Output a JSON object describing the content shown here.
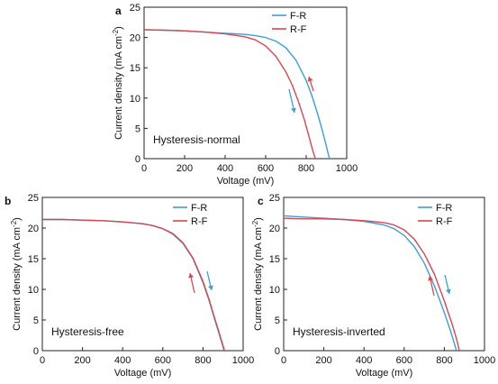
{
  "chart_data": [
    {
      "panel_label": "a",
      "type": "line",
      "annotation": "Hysteresis-normal",
      "xlabel": "Voltage (mV)",
      "ylabel_main": "Current density (mA cm",
      "ylabel_sup": "-2",
      "ylabel_close": ")",
      "xlim": [
        0,
        1000
      ],
      "ylim": [
        0,
        25
      ],
      "xticks": [
        0,
        200,
        400,
        600,
        800,
        1000
      ],
      "yticks": [
        0,
        5,
        10,
        15,
        20,
        25
      ],
      "legend": "top-right",
      "series": [
        {
          "name": "F-R",
          "color": "#3a9fd8",
          "x": [
            0,
            100,
            200,
            300,
            400,
            500,
            550,
            600,
            650,
            700,
            750,
            800,
            830,
            860,
            880,
            900,
            910,
            915
          ],
          "y": [
            21.3,
            21.2,
            21.1,
            20.9,
            20.7,
            20.5,
            20.3,
            20.0,
            19.4,
            18.3,
            16.2,
            12.9,
            10.2,
            7.0,
            4.6,
            2.0,
            0.6,
            0
          ]
        },
        {
          "name": "R-F",
          "color": "#d8474e",
          "x": [
            0,
            100,
            200,
            300,
            400,
            500,
            550,
            600,
            650,
            700,
            730,
            760,
            790,
            810,
            830,
            845
          ],
          "y": [
            21.3,
            21.2,
            21.1,
            20.9,
            20.6,
            20.1,
            19.6,
            18.6,
            16.9,
            14.3,
            12.2,
            9.6,
            6.5,
            4.1,
            1.6,
            0
          ]
        }
      ]
    },
    {
      "panel_label": "b",
      "type": "line",
      "annotation": "Hysteresis-free",
      "xlabel": "Voltage (mV)",
      "ylabel_main": "Current density (mA cm",
      "ylabel_sup": "-2",
      "ylabel_close": ")",
      "xlim": [
        0,
        1000
      ],
      "ylim": [
        0,
        25
      ],
      "xticks": [
        0,
        200,
        400,
        600,
        800,
        1000
      ],
      "yticks": [
        0,
        5,
        10,
        15,
        20,
        25
      ],
      "legend": "top-right",
      "series": [
        {
          "name": "F-R",
          "color": "#3a9fd8",
          "x": [
            0,
            100,
            200,
            300,
            400,
            500,
            550,
            600,
            650,
            700,
            750,
            800,
            830,
            860,
            880,
            900,
            905
          ],
          "y": [
            21.4,
            21.4,
            21.3,
            21.2,
            21.0,
            20.7,
            20.4,
            19.9,
            19.0,
            17.5,
            15.0,
            11.1,
            8.2,
            4.9,
            2.8,
            0.6,
            0
          ]
        },
        {
          "name": "R-F",
          "color": "#d8474e",
          "x": [
            0,
            100,
            200,
            300,
            400,
            500,
            550,
            600,
            650,
            700,
            750,
            800,
            830,
            860,
            880,
            900,
            907
          ],
          "y": [
            21.4,
            21.4,
            21.3,
            21.2,
            21.0,
            20.7,
            20.4,
            19.9,
            19.1,
            17.6,
            15.1,
            11.3,
            8.4,
            5.1,
            3.0,
            0.8,
            0
          ]
        }
      ]
    },
    {
      "panel_label": "c",
      "type": "line",
      "annotation": "Hysteresis-inverted",
      "xlabel": "Voltage (mV)",
      "ylabel_main": "Current density (mA cm",
      "ylabel_sup": "-2",
      "ylabel_close": ")",
      "xlim": [
        0,
        1000
      ],
      "ylim": [
        0,
        25
      ],
      "xticks": [
        0,
        200,
        400,
        600,
        800,
        1000
      ],
      "yticks": [
        0,
        5,
        10,
        15,
        20,
        25
      ],
      "legend": "top-right",
      "series": [
        {
          "name": "F-R",
          "color": "#3a9fd8",
          "x": [
            0,
            100,
            200,
            300,
            400,
            500,
            550,
            600,
            650,
            700,
            750,
            800,
            830,
            850,
            860
          ],
          "y": [
            22.0,
            21.8,
            21.6,
            21.4,
            21.1,
            20.5,
            19.9,
            18.8,
            17.0,
            14.3,
            10.6,
            6.2,
            3.3,
            1.2,
            0
          ]
        },
        {
          "name": "R-F",
          "color": "#d8474e",
          "x": [
            0,
            100,
            200,
            300,
            400,
            500,
            550,
            600,
            650,
            700,
            750,
            800,
            840,
            860,
            875
          ],
          "y": [
            21.6,
            21.5,
            21.5,
            21.4,
            21.2,
            20.9,
            20.5,
            19.7,
            18.2,
            15.8,
            12.5,
            8.1,
            4.2,
            2.0,
            0
          ]
        }
      ]
    }
  ]
}
